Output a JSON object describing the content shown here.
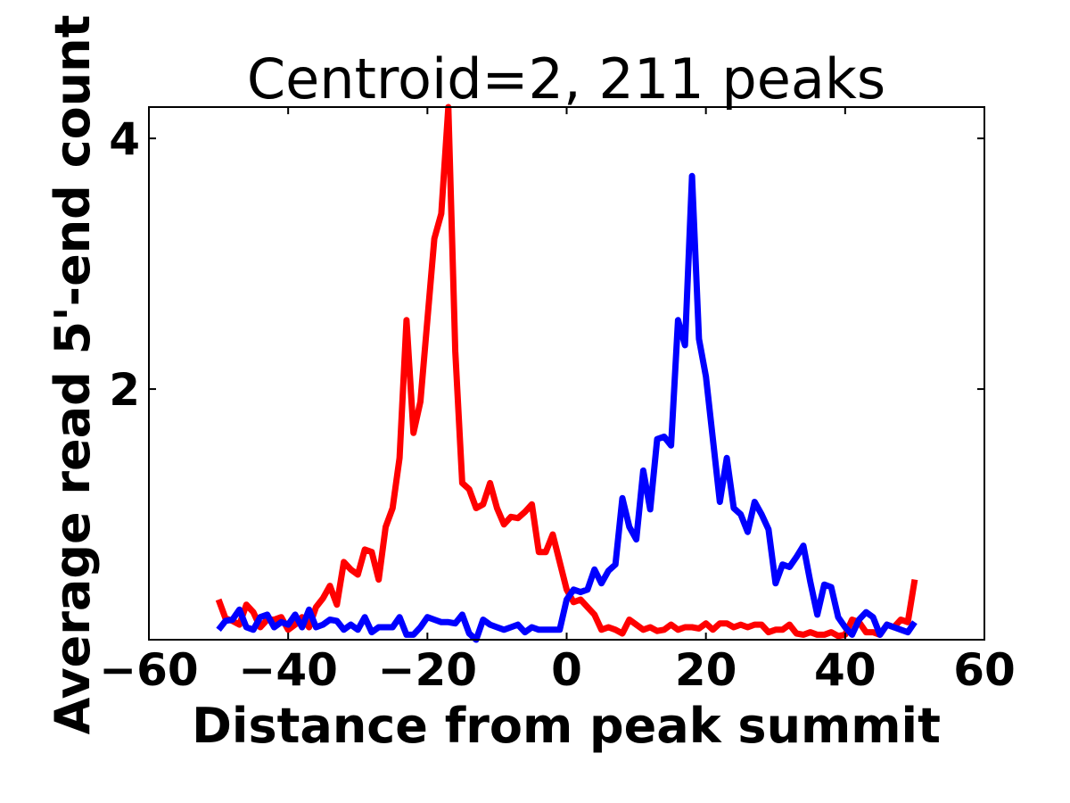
{
  "chart_data": {
    "type": "line",
    "title": "Centroid=2, 211 peaks",
    "xlabel": "Distance from peak summit",
    "ylabel": "Average read 5'-end count",
    "xlim": [
      -60,
      60
    ],
    "ylim": [
      0,
      4.25
    ],
    "xticks": [
      -60,
      -40,
      -20,
      0,
      20,
      40,
      60
    ],
    "xtick_labels": [
      "−60",
      "−40",
      "−20",
      "0",
      "20",
      "40",
      "60"
    ],
    "yticks": [
      2,
      4
    ],
    "ytick_labels": [
      "2",
      "4"
    ],
    "grid": false,
    "legend": "none",
    "x": [
      -50,
      -49,
      -48,
      -47,
      -46,
      -45,
      -44,
      -43,
      -42,
      -41,
      -40,
      -39,
      -38,
      -37,
      -36,
      -35,
      -34,
      -33,
      -32,
      -31,
      -30,
      -29,
      -28,
      -27,
      -26,
      -25,
      -24,
      -23,
      -22,
      -21,
      -20,
      -19,
      -18,
      -17,
      -16,
      -15,
      -14,
      -13,
      -12,
      -11,
      -10,
      -9,
      -8,
      -7,
      -6,
      -5,
      -4,
      -3,
      -2,
      -1,
      0,
      1,
      2,
      3,
      4,
      5,
      6,
      7,
      8,
      9,
      10,
      11,
      12,
      13,
      14,
      15,
      16,
      17,
      18,
      19,
      20,
      21,
      22,
      23,
      24,
      25,
      26,
      27,
      28,
      29,
      30,
      31,
      32,
      33,
      34,
      35,
      36,
      37,
      38,
      39,
      40,
      41,
      42,
      43,
      44,
      45,
      46,
      47,
      48,
      49,
      50
    ],
    "series": [
      {
        "color": "#ff0000",
        "values": [
          0.32,
          0.17,
          0.15,
          0.12,
          0.28,
          0.22,
          0.1,
          0.16,
          0.16,
          0.18,
          0.08,
          0.12,
          0.18,
          0.1,
          0.26,
          0.33,
          0.43,
          0.28,
          0.62,
          0.56,
          0.52,
          0.72,
          0.7,
          0.48,
          0.9,
          1.05,
          1.45,
          2.55,
          1.65,
          1.9,
          2.55,
          3.2,
          3.4,
          4.25,
          2.3,
          1.25,
          1.2,
          1.05,
          1.08,
          1.25,
          1.05,
          0.92,
          0.98,
          0.97,
          1.02,
          1.08,
          0.7,
          0.7,
          0.84,
          0.62,
          0.4,
          0.3,
          0.32,
          0.26,
          0.2,
          0.08,
          0.1,
          0.08,
          0.05,
          0.16,
          0.12,
          0.08,
          0.1,
          0.07,
          0.08,
          0.12,
          0.08,
          0.1,
          0.1,
          0.09,
          0.13,
          0.08,
          0.13,
          0.13,
          0.1,
          0.12,
          0.1,
          0.12,
          0.12,
          0.06,
          0.08,
          0.08,
          0.12,
          0.05,
          0.04,
          0.06,
          0.04,
          0.04,
          0.06,
          0.03,
          0.04,
          0.16,
          0.14,
          0.06,
          0.06,
          0.04,
          0.12,
          0.1,
          0.16,
          0.14,
          0.48
        ]
      },
      {
        "color": "#0000ff",
        "values": [
          0.08,
          0.15,
          0.16,
          0.24,
          0.1,
          0.08,
          0.18,
          0.2,
          0.1,
          0.14,
          0.12,
          0.2,
          0.1,
          0.24,
          0.1,
          0.12,
          0.16,
          0.15,
          0.08,
          0.12,
          0.08,
          0.18,
          0.06,
          0.1,
          0.1,
          0.1,
          0.18,
          0.04,
          0.04,
          0.1,
          0.18,
          0.16,
          0.14,
          0.14,
          0.13,
          0.2,
          0.05,
          0.0,
          0.16,
          0.12,
          0.1,
          0.08,
          0.1,
          0.12,
          0.06,
          0.1,
          0.08,
          0.08,
          0.08,
          0.08,
          0.32,
          0.4,
          0.38,
          0.4,
          0.56,
          0.45,
          0.55,
          0.6,
          1.13,
          0.9,
          0.8,
          1.35,
          1.04,
          1.6,
          1.62,
          1.55,
          2.55,
          2.35,
          3.7,
          2.4,
          2.1,
          1.6,
          1.1,
          1.45,
          1.05,
          1.0,
          0.86,
          1.1,
          1.0,
          0.88,
          0.45,
          0.6,
          0.58,
          0.66,
          0.75,
          0.46,
          0.2,
          0.44,
          0.42,
          0.18,
          0.1,
          0.04,
          0.16,
          0.22,
          0.18,
          0.04,
          0.12,
          0.1,
          0.08,
          0.06,
          0.14
        ]
      }
    ]
  }
}
